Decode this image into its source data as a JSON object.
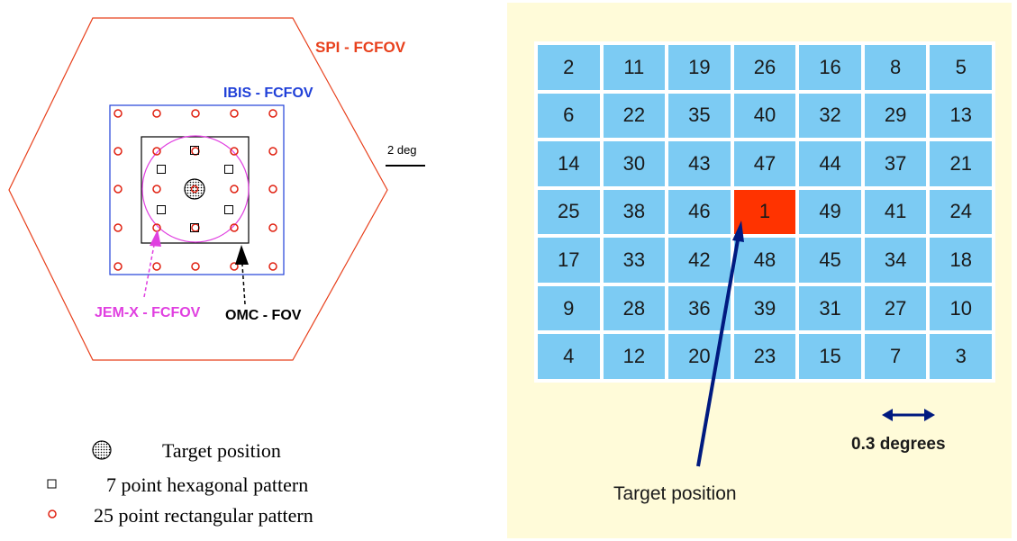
{
  "left": {
    "labels": {
      "spi": "SPI - FCFOV",
      "ibis": "IBIS - FCFOV",
      "jemx": "JEM-X - FCFOV",
      "omc": "OMC - FOV",
      "scale": "2 deg"
    },
    "colors": {
      "spi": "#e8401c",
      "ibis": "#2040d8",
      "jemx": "#e040e0",
      "omc": "#000000",
      "point_marker": "#e02010"
    },
    "legend": [
      {
        "icon": "target-icon",
        "text": "Target position"
      },
      {
        "icon": "square-icon",
        "text": "7 point hexagonal pattern"
      },
      {
        "icon": "circle-icon",
        "text": "25 point rectangular pattern"
      }
    ]
  },
  "right": {
    "grid": [
      [
        "2",
        "11",
        "19",
        "26",
        "16",
        "8",
        "5"
      ],
      [
        "6",
        "22",
        "35",
        "40",
        "32",
        "29",
        "13"
      ],
      [
        "14",
        "30",
        "43",
        "47",
        "44",
        "37",
        "21"
      ],
      [
        "25",
        "38",
        "46",
        "1",
        "49",
        "41",
        "24"
      ],
      [
        "17",
        "33",
        "42",
        "48",
        "45",
        "34",
        "18"
      ],
      [
        "9",
        "28",
        "36",
        "39",
        "31",
        "27",
        "10"
      ],
      [
        "4",
        "12",
        "20",
        "23",
        "15",
        "7",
        "3"
      ]
    ],
    "target_cell": "1",
    "target_label": "Target position",
    "scale_label": "0.3 degrees",
    "colors": {
      "background": "#fffbd9",
      "cell": "#7ccbf3",
      "target_cell": "#ff3300",
      "arrow": "#001a80"
    }
  }
}
